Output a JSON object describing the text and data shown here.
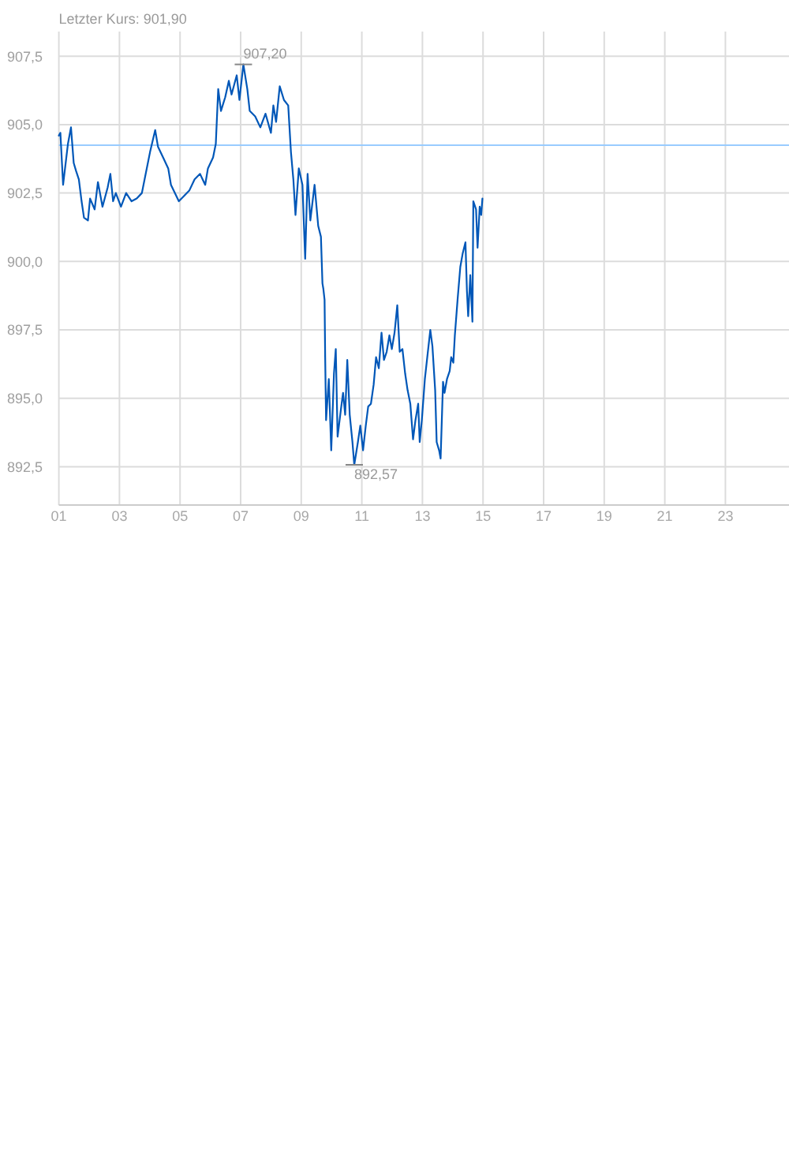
{
  "chart_data": {
    "type": "line",
    "title": "Letzter Kurs: 901,90",
    "color": "#0057b8",
    "x": [
      1.0,
      1.05,
      1.14,
      1.3,
      1.4,
      1.49,
      1.57,
      1.66,
      1.75,
      1.83,
      1.96,
      2.03,
      2.18,
      2.29,
      2.44,
      2.61,
      2.7,
      2.79,
      2.88,
      3.05,
      3.22,
      3.4,
      3.57,
      3.74,
      3.83,
      4.01,
      4.18,
      4.27,
      4.44,
      4.61,
      4.7,
      4.96,
      5.05,
      5.31,
      5.48,
      5.66,
      5.83,
      5.92,
      6.09,
      6.18,
      6.26,
      6.35,
      6.49,
      6.61,
      6.7,
      6.87,
      6.96,
      7.09,
      7.22,
      7.3,
      7.48,
      7.65,
      7.82,
      8.0,
      8.08,
      8.17,
      8.29,
      8.43,
      8.57,
      8.66,
      8.74,
      8.81,
      8.92,
      9.04,
      9.13,
      9.21,
      9.3,
      9.44,
      9.56,
      9.65,
      9.7,
      9.73,
      9.77,
      9.79,
      9.82,
      9.91,
      9.99,
      10.08,
      10.14,
      10.2,
      10.31,
      10.38,
      10.45,
      10.52,
      10.6,
      10.69,
      10.75,
      10.87,
      10.95,
      11.04,
      11.13,
      11.21,
      11.3,
      11.39,
      11.47,
      11.56,
      11.65,
      11.73,
      11.82,
      11.91,
      11.99,
      12.08,
      12.17,
      12.25,
      12.34,
      12.43,
      12.51,
      12.6,
      12.69,
      12.77,
      12.86,
      12.91,
      12.98,
      13.08,
      13.16,
      13.26,
      13.33,
      13.42,
      13.47,
      13.55,
      13.6,
      13.68,
      13.73,
      13.81,
      13.9,
      13.95,
      14.02,
      14.07,
      14.16,
      14.25,
      14.33,
      14.42,
      14.47,
      14.51,
      14.58,
      14.65,
      14.68,
      14.77,
      14.82,
      14.89,
      14.94,
      14.98
    ],
    "values": [
      904.6,
      904.7,
      902.8,
      904.3,
      904.9,
      903.6,
      903.3,
      903.0,
      902.2,
      901.6,
      901.5,
      902.3,
      901.9,
      902.9,
      902.0,
      902.7,
      903.2,
      902.2,
      902.5,
      902.0,
      902.5,
      902.2,
      902.3,
      902.5,
      903.0,
      904.0,
      904.8,
      904.2,
      903.8,
      903.4,
      902.8,
      902.2,
      902.3,
      902.6,
      903.0,
      903.2,
      902.8,
      903.4,
      903.8,
      904.3,
      906.3,
      905.5,
      906.0,
      906.6,
      906.1,
      906.8,
      905.9,
      907.2,
      906.3,
      905.5,
      905.3,
      904.9,
      905.4,
      904.7,
      905.7,
      905.1,
      906.4,
      905.9,
      905.7,
      904.0,
      903.0,
      901.7,
      903.4,
      902.8,
      900.1,
      903.2,
      901.5,
      902.8,
      901.3,
      900.9,
      899.2,
      899.0,
      898.6,
      896.5,
      894.2,
      895.7,
      893.1,
      895.9,
      896.8,
      893.6,
      894.6,
      895.2,
      894.4,
      896.4,
      894.4,
      893.4,
      892.57,
      893.4,
      894.0,
      893.1,
      894.0,
      894.7,
      894.8,
      895.5,
      896.5,
      896.1,
      897.4,
      896.4,
      896.7,
      897.3,
      896.8,
      897.4,
      898.4,
      896.7,
      896.8,
      895.9,
      895.3,
      894.8,
      893.5,
      894.2,
      894.8,
      893.4,
      894.2,
      895.7,
      896.5,
      897.5,
      896.9,
      895.3,
      893.4,
      893.1,
      892.8,
      895.6,
      895.2,
      895.7,
      896.0,
      896.5,
      896.3,
      897.3,
      898.6,
      899.8,
      900.3,
      900.7,
      898.9,
      898.0,
      899.5,
      897.8,
      902.2,
      901.9,
      900.5,
      902.0,
      901.7,
      902.3
    ],
    "xlim": [
      1,
      25
    ],
    "xticks": [
      {
        "value": 1,
        "label": "01"
      },
      {
        "value": 3,
        "label": "03"
      },
      {
        "value": 5,
        "label": "05"
      },
      {
        "value": 7,
        "label": "07"
      },
      {
        "value": 9,
        "label": "09"
      },
      {
        "value": 11,
        "label": "11"
      },
      {
        "value": 13,
        "label": "13"
      },
      {
        "value": 15,
        "label": "15"
      },
      {
        "value": 17,
        "label": "17"
      },
      {
        "value": 19,
        "label": "19"
      },
      {
        "value": 21,
        "label": "21"
      },
      {
        "value": 23,
        "label": "23"
      }
    ],
    "ylim": [
      891.1,
      908.4
    ],
    "yticks": [
      {
        "value": 892.5,
        "label": "892,5"
      },
      {
        "value": 895,
        "label": "895,0"
      },
      {
        "value": 897.5,
        "label": "897,5"
      },
      {
        "value": 900,
        "label": "900,0"
      },
      {
        "value": 902.5,
        "label": "902,5"
      },
      {
        "value": 905,
        "label": "905,0"
      },
      {
        "value": 907.5,
        "label": "907,5"
      }
    ],
    "grid": true,
    "ref_lines": [
      {
        "axis": "y",
        "value": 904.25,
        "color": "#99ccff"
      }
    ],
    "annotations": [
      {
        "text": "907,20",
        "x": 7.09,
        "y": 907.2
      },
      {
        "text": "892,57",
        "x": 10.75,
        "y": 892.57
      }
    ]
  }
}
